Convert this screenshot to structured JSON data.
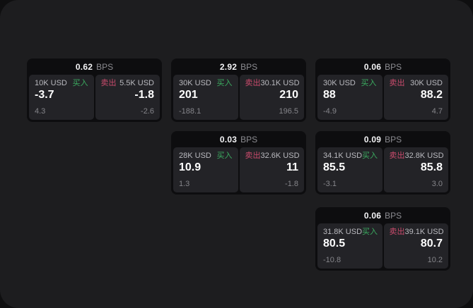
{
  "labels": {
    "bps": "BPS",
    "buy": "买入",
    "sell": "卖出"
  },
  "colors": {
    "page_bg": "#1d1d1f",
    "card_bg": "#0d0d0f",
    "panel_bg": "#232327",
    "buy_green": "#3bab60",
    "sell_red": "#c94b6c"
  },
  "cards": [
    {
      "bps": "0.62",
      "buy": {
        "amount": "10K USD",
        "value": "-3.7",
        "delta": "4.3"
      },
      "sell": {
        "amount": "5.5K USD",
        "value": "-1.8",
        "delta": "-2.6"
      }
    },
    {
      "bps": "2.92",
      "buy": {
        "amount": "30K USD",
        "value": "201",
        "delta": "-188.1"
      },
      "sell": {
        "amount": "30.1K USD",
        "value": "210",
        "delta": "196.5"
      }
    },
    {
      "bps": "0.06",
      "buy": {
        "amount": "30K USD",
        "value": "88",
        "delta": "-4.9"
      },
      "sell": {
        "amount": "30K USD",
        "value": "88.2",
        "delta": "4.7"
      }
    },
    {
      "bps": "0.03",
      "buy": {
        "amount": "28K USD",
        "value": "10.9",
        "delta": "1.3"
      },
      "sell": {
        "amount": "32.6K USD",
        "value": "11",
        "delta": "-1.8"
      }
    },
    {
      "bps": "0.09",
      "buy": {
        "amount": "34.1K USD",
        "value": "85.5",
        "delta": "-3.1"
      },
      "sell": {
        "amount": "32.8K USD",
        "value": "85.8",
        "delta": "3.0"
      }
    },
    {
      "bps": "0.06",
      "buy": {
        "amount": "31.8K USD",
        "value": "80.5",
        "delta": "-10.8"
      },
      "sell": {
        "amount": "39.1K USD",
        "value": "80.7",
        "delta": "10.2"
      }
    }
  ]
}
